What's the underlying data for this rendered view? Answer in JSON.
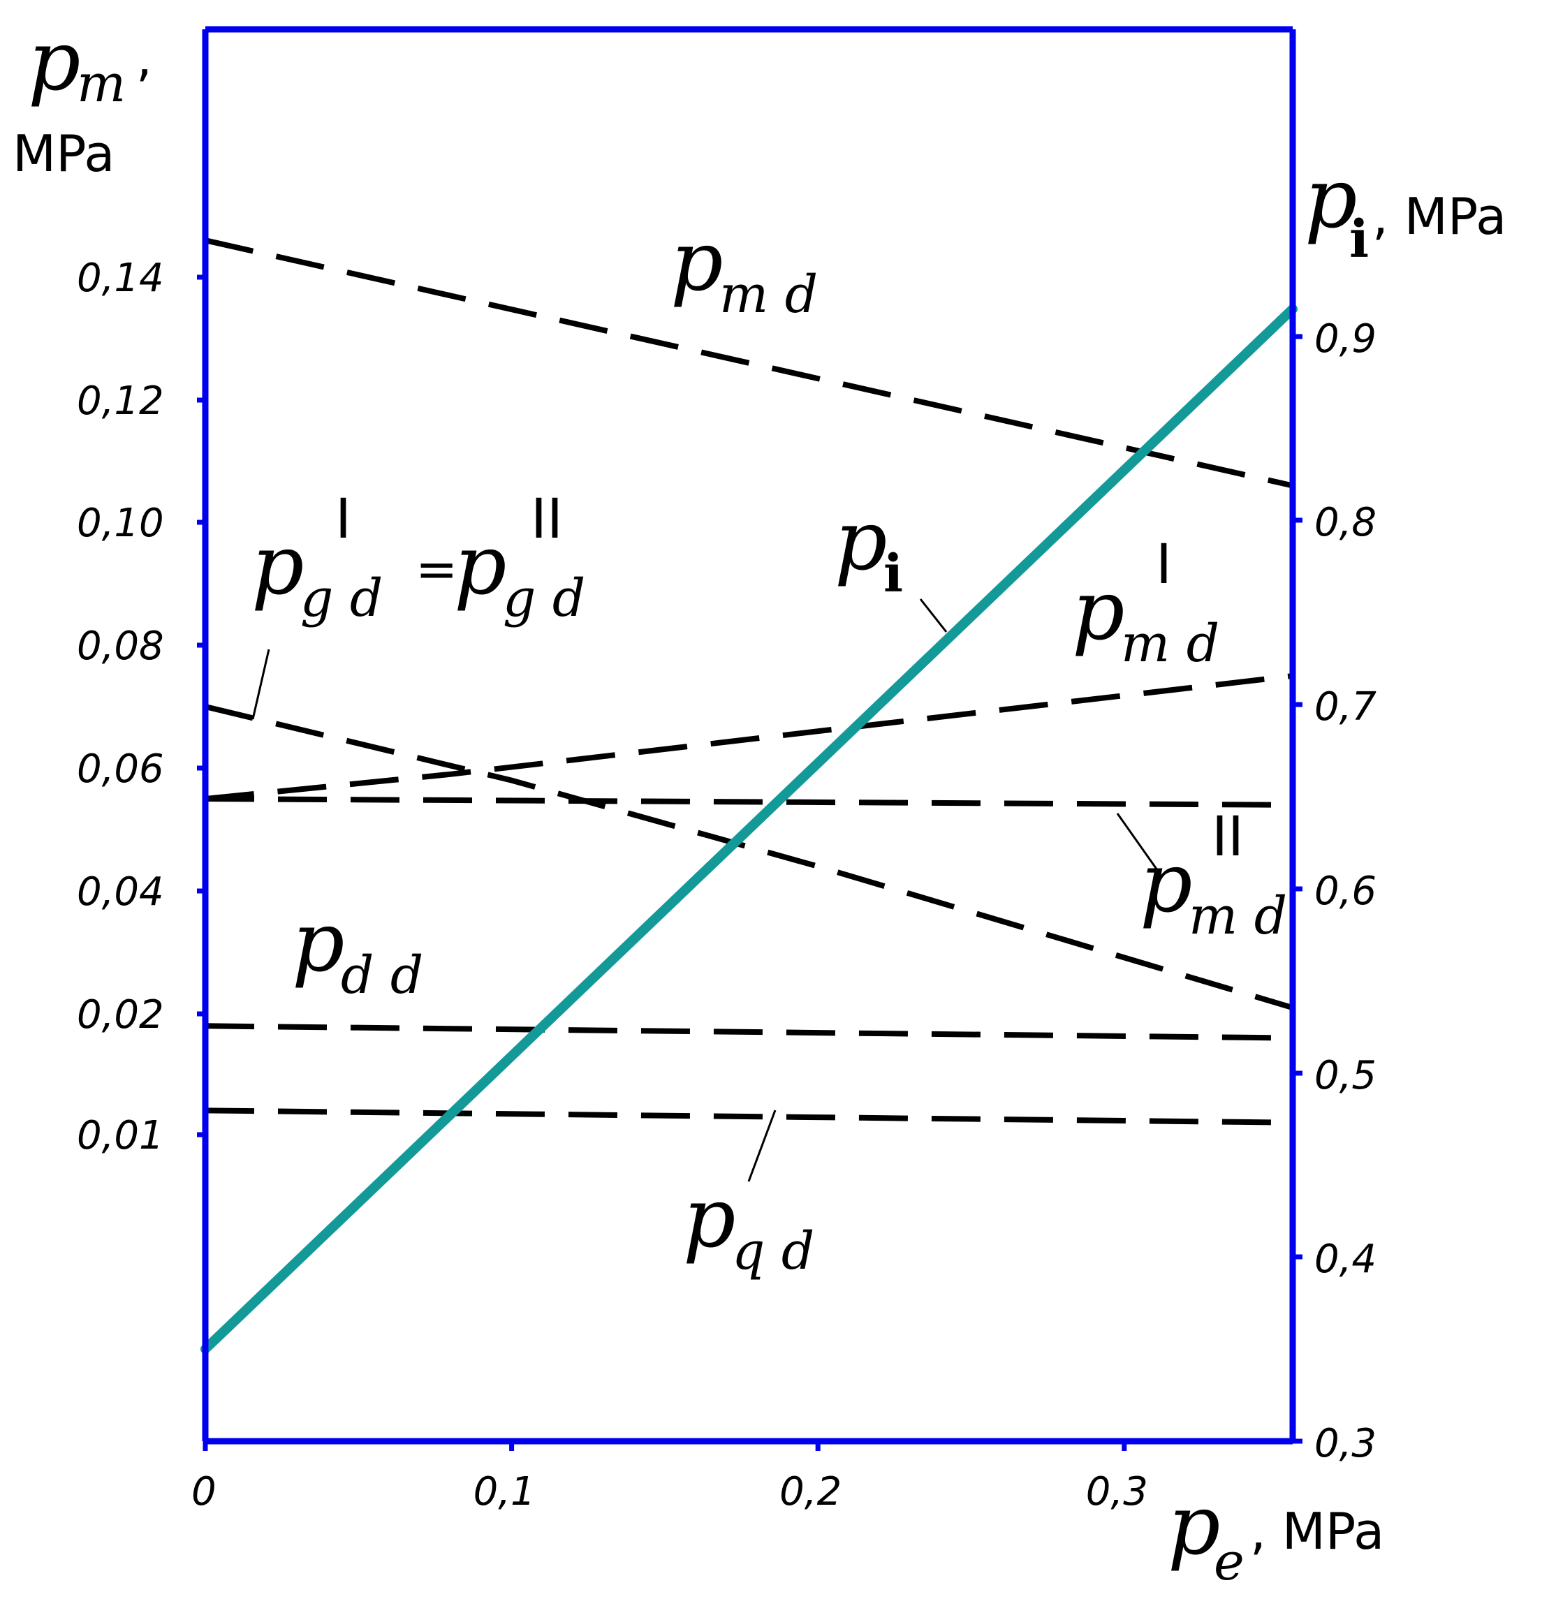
{
  "chart_data": {
    "type": "line",
    "x_axis": {
      "range": [
        0,
        0.355
      ],
      "ticks": [
        0,
        0.1,
        0.2,
        0.3
      ],
      "tick_labels": [
        "0",
        "0,1",
        "0,2",
        "0,3"
      ],
      "label_symbol": "p",
      "label_sub": "e",
      "label_unit": ", MPa"
    },
    "y_left_axis": {
      "ticks": [
        0.01,
        0.02,
        0.04,
        0.06,
        0.08,
        0.1,
        0.12,
        0.14
      ],
      "tick_labels": [
        "0,01",
        "0,02",
        "0,04",
        "0,06",
        "0,08",
        "0,10",
        "0,12",
        "0,14"
      ],
      "label_symbol": "p",
      "label_sub": "m",
      "label_comma": ",",
      "label_unit": "MPa"
    },
    "y_right_axis": {
      "range": [
        0.3,
        0.92
      ],
      "ticks": [
        0.3,
        0.4,
        0.5,
        0.6,
        0.7,
        0.8,
        0.9
      ],
      "tick_labels": [
        "0,3",
        "0,4",
        "0,5",
        "0,6",
        "0,7",
        "0,8",
        "0,9"
      ],
      "label_symbol": "p",
      "label_sub": "i",
      "label_unit": ", MPa"
    },
    "series": [
      {
        "key": "p_md",
        "axis": "left",
        "style": "dashed",
        "x": [
          0,
          0.355
        ],
        "y": [
          0.146,
          0.106
        ]
      },
      {
        "key": "p_md_prime",
        "axis": "left",
        "style": "dashed",
        "x": [
          0,
          0.08,
          0.2,
          0.355
        ],
        "y": [
          0.055,
          0.059,
          0.066,
          0.075
        ]
      },
      {
        "key": "p_md_double",
        "axis": "left",
        "style": "dashed",
        "x": [
          0,
          0.355
        ],
        "y": [
          0.055,
          0.054
        ]
      },
      {
        "key": "p_gd",
        "axis": "left",
        "style": "dashed",
        "x": [
          0,
          0.1,
          0.2,
          0.355
        ],
        "y": [
          0.07,
          0.058,
          0.044,
          0.021
        ]
      },
      {
        "key": "p_dd",
        "axis": "left",
        "style": "dashed",
        "x": [
          0,
          0.355
        ],
        "y": [
          0.019,
          0.018
        ]
      },
      {
        "key": "p_qd",
        "axis": "left",
        "style": "dashed",
        "x": [
          0,
          0.355
        ],
        "y": [
          0.012,
          0.011
        ]
      },
      {
        "key": "p_i",
        "axis": "right",
        "style": "solid",
        "color": "#149999",
        "x": [
          0,
          0.355
        ],
        "y": [
          0.35,
          0.915
        ]
      }
    ],
    "annotations": {
      "p_md": {
        "sym": "p",
        "sub": "m d"
      },
      "p_md_prime": {
        "sym": "p",
        "sub": "m d",
        "sup": "I"
      },
      "p_md_double": {
        "sym": "p",
        "sub": "m d",
        "sup": "II"
      },
      "p_gd": {
        "sym": "p",
        "sub": "g d",
        "sup": "I",
        "eq": "=",
        "sym2": "p",
        "sub2": "g d",
        "sup2": "II"
      },
      "p_dd": {
        "sym": "p",
        "sub": "d d"
      },
      "p_qd": {
        "sym": "p",
        "sub": "q d"
      },
      "p_i": {
        "sym": "p",
        "sub": "i"
      }
    },
    "colors": {
      "axes": "#0000ee",
      "dashed": "#000000",
      "p_i": "#149999"
    },
    "grid": false
  }
}
